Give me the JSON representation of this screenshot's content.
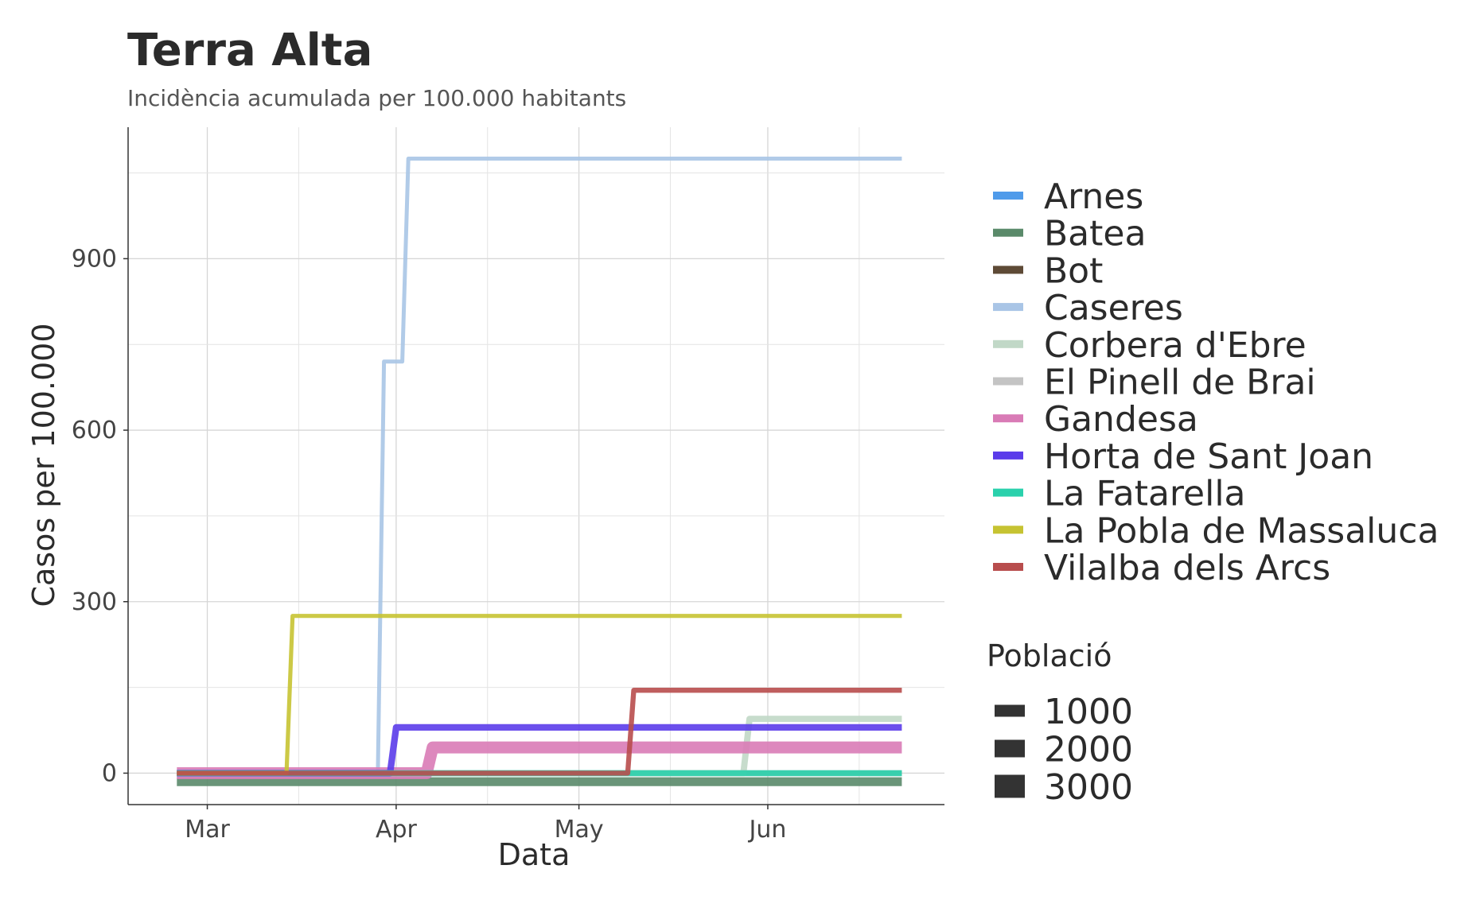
{
  "chart_data": {
    "type": "line",
    "title": "Terra Alta",
    "subtitle": "Incidència acumulada per 100.000 habitants",
    "xlabel": "Data",
    "ylabel": "Casos per 100.000",
    "x_ticks": [
      "Mar",
      "Apr",
      "May",
      "Jun"
    ],
    "y_ticks": [
      0,
      300,
      600,
      900
    ],
    "xlim": [
      "2020-02-17",
      "2020-06-30"
    ],
    "ylim": [
      -55,
      1130
    ],
    "grid": true,
    "legend_position": "right",
    "size_legend": {
      "title": "Població",
      "values": [
        1000,
        2000,
        3000
      ]
    },
    "series": [
      {
        "name": "Arnes",
        "color": "#4f9bea",
        "population": 500,
        "points": [
          [
            "2020-02-25",
            0
          ],
          [
            "2020-06-23",
            0
          ]
        ]
      },
      {
        "name": "Batea",
        "color": "#5a8a6a",
        "population": 2000,
        "points": [
          [
            "2020-02-25",
            -15
          ],
          [
            "2020-06-23",
            -15
          ]
        ]
      },
      {
        "name": "Bot",
        "color": "#5e4a36",
        "population": 600,
        "points": [
          [
            "2020-02-25",
            0
          ],
          [
            "2020-06-23",
            0
          ]
        ]
      },
      {
        "name": "Caseres",
        "color": "#a9c5e6",
        "population": 280,
        "points": [
          [
            "2020-02-25",
            0
          ],
          [
            "2020-03-29",
            0
          ],
          [
            "2020-03-30",
            720
          ],
          [
            "2020-04-02",
            720
          ],
          [
            "2020-04-03",
            1075
          ],
          [
            "2020-06-23",
            1075
          ]
        ]
      },
      {
        "name": "Corbera d'Ebre",
        "color": "#c1d8c7",
        "population": 1100,
        "points": [
          [
            "2020-02-25",
            0
          ],
          [
            "2020-05-28",
            0
          ],
          [
            "2020-05-29",
            95
          ],
          [
            "2020-06-23",
            95
          ]
        ]
      },
      {
        "name": "El Pinell de Brai",
        "color": "#c4c4c4",
        "population": 1000,
        "points": [
          [
            "2020-02-25",
            0
          ],
          [
            "2020-06-23",
            0
          ]
        ]
      },
      {
        "name": "Gandesa",
        "color": "#d97bb6",
        "population": 3100,
        "points": [
          [
            "2020-02-25",
            0
          ],
          [
            "2020-04-06",
            0
          ],
          [
            "2020-04-07",
            45
          ],
          [
            "2020-06-23",
            45
          ]
        ]
      },
      {
        "name": "Horta de Sant Joan",
        "color": "#5b3cea",
        "population": 1200,
        "points": [
          [
            "2020-02-25",
            0
          ],
          [
            "2020-03-31",
            0
          ],
          [
            "2020-04-01",
            80
          ],
          [
            "2020-06-23",
            80
          ]
        ]
      },
      {
        "name": "La Fatarella",
        "color": "#2ad1ac",
        "population": 1000,
        "points": [
          [
            "2020-02-25",
            0
          ],
          [
            "2020-06-23",
            0
          ]
        ]
      },
      {
        "name": "La Pobla de Massaluca",
        "color": "#c6c332",
        "population": 350,
        "points": [
          [
            "2020-02-25",
            0
          ],
          [
            "2020-03-14",
            0
          ],
          [
            "2020-03-15",
            275
          ],
          [
            "2020-06-23",
            275
          ]
        ]
      },
      {
        "name": "Vilalba dels Arcs",
        "color": "#b84d4d",
        "population": 650,
        "points": [
          [
            "2020-02-25",
            0
          ],
          [
            "2020-05-09",
            0
          ],
          [
            "2020-05-10",
            145
          ],
          [
            "2020-06-23",
            145
          ]
        ]
      }
    ]
  }
}
